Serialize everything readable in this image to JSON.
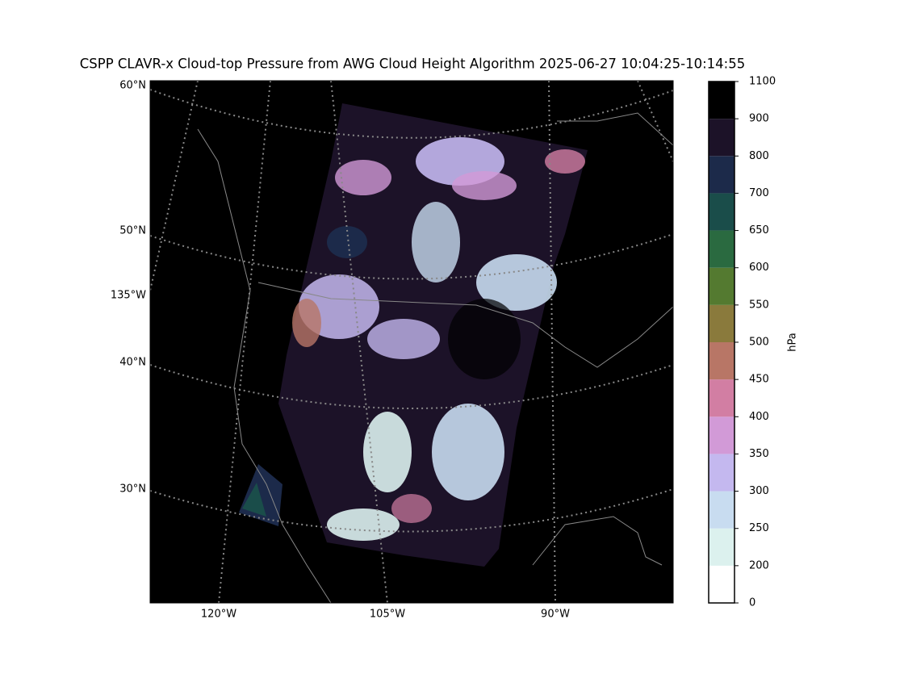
{
  "map": {
    "title": "CSPP CLAVR-x Cloud-top Pressure from AWG Cloud Height Algorithm 2025-06-27 10:04:25-10:14:55",
    "lat_labels": [
      "60°N",
      "50°N",
      "135°W",
      "40°N",
      "30°N"
    ],
    "lon_labels": [
      "120°W",
      "105°W",
      "90°W"
    ],
    "colorbar": {
      "label": "hPa",
      "ticks": [
        0,
        200,
        250,
        300,
        350,
        400,
        450,
        500,
        550,
        600,
        650,
        700,
        800,
        900,
        1100
      ],
      "colors": [
        "#ffffff",
        "#dcf1ee",
        "#c8dcf0",
        "#c4b8ef",
        "#d29ad7",
        "#d27ea3",
        "#b87666",
        "#8a7a3c",
        "#547a30",
        "#2a6a40",
        "#1a4d4a",
        "#1c2a4a",
        "#1c1228",
        "#000000"
      ]
    }
  }
}
